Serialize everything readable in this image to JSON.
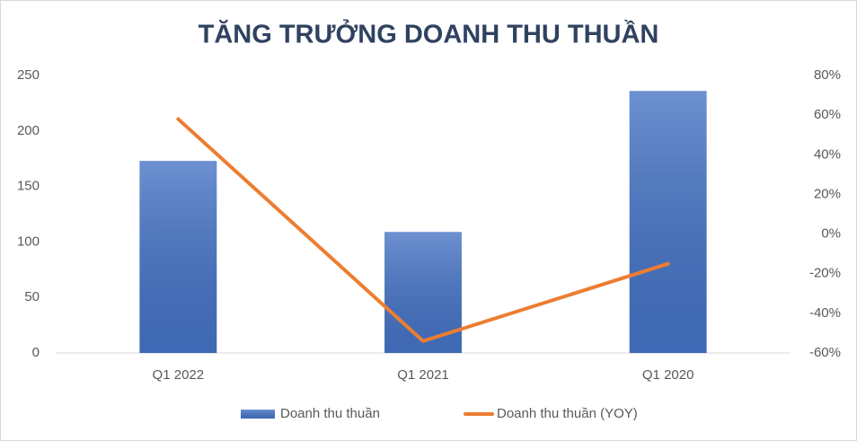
{
  "chart_data": {
    "type": "combo",
    "title": "TĂNG TRƯỞNG DOANH THU THUẦN",
    "categories": [
      "Q1 2022",
      "Q1 2021",
      "Q1 2020"
    ],
    "series": [
      {
        "name": "Doanh thu thuần",
        "type": "bar",
        "color": "#4472c4",
        "values": [
          173,
          109,
          236
        ]
      },
      {
        "name": "Doanh thu thuần (YOY)",
        "type": "line",
        "axis": "y2",
        "color": "#ed7d31",
        "values": [
          58,
          -54,
          -15
        ]
      }
    ],
    "ylim": [
      0,
      250
    ],
    "yticks": [
      0,
      50,
      100,
      150,
      200,
      250
    ],
    "y2lim": [
      -60,
      80
    ],
    "y2ticks": [
      {
        "value": -60,
        "label": "-60%"
      },
      {
        "value": -40,
        "label": "-40%"
      },
      {
        "value": -20,
        "label": "-20%"
      },
      {
        "value": 0,
        "label": "0%"
      },
      {
        "value": 20,
        "label": "20%"
      },
      {
        "value": 40,
        "label": "40%"
      },
      {
        "value": 60,
        "label": "60%"
      },
      {
        "value": 80,
        "label": "80%"
      }
    ],
    "grid": false,
    "legend": "bottom"
  }
}
